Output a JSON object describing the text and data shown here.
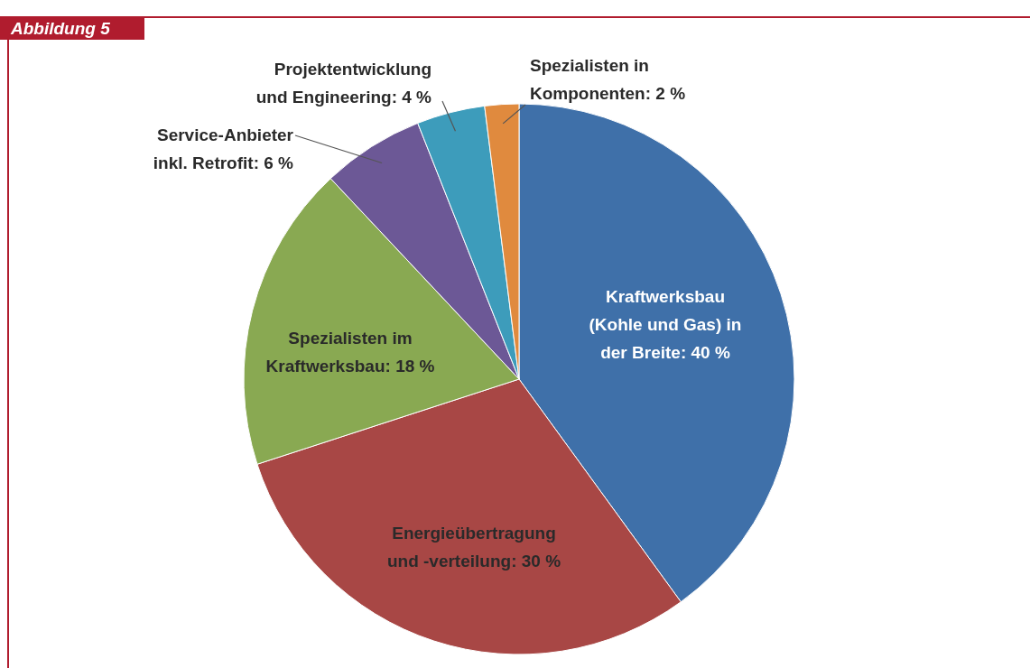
{
  "chart_data": {
    "type": "pie",
    "title": "Abbildung 5",
    "categories": [
      "Kraftwerksbau (Kohle und Gas) in der Breite",
      "Energieübertragung und -verteilung",
      "Spezialisten im Kraftwerksbau",
      "Service-Anbieter inkl. Retrofit",
      "Projektentwicklung und Engineering",
      "Spezialisten in Komponenten"
    ],
    "values": [
      40,
      30,
      18,
      6,
      4,
      2
    ],
    "value_labels": [
      "40 %",
      "30 %",
      "18 %",
      "6 %",
      "4 %",
      "2 %"
    ],
    "colors": [
      "#3f70a9",
      "#a84745",
      "#89a952",
      "#6c5896",
      "#3d9cbb",
      "#e08a3e"
    ]
  }
}
